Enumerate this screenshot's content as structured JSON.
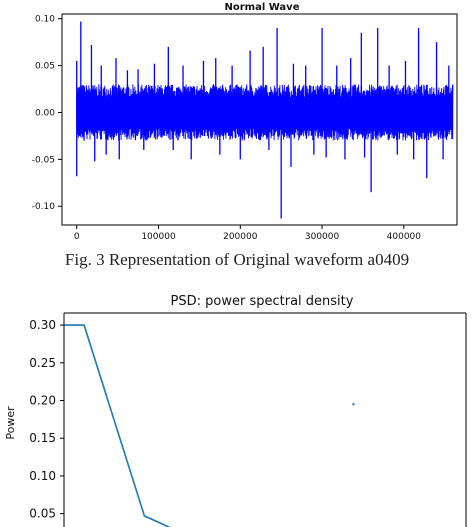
{
  "caption": "Fig.  3 Representation of Original waveform  a0409",
  "chart_data": [
    {
      "type": "line",
      "title": "Normal Wave",
      "xlabel": "",
      "ylabel": "",
      "xlim": [
        -18000,
        465000
      ],
      "ylim": [
        -0.12,
        0.105
      ],
      "x_ticks": [
        0,
        100000,
        200000,
        300000,
        400000
      ],
      "x_tick_labels": [
        "0",
        "100000",
        "200000",
        "300000",
        "400000"
      ],
      "y_ticks": [
        0.1,
        0.05,
        0.0,
        -0.05,
        -0.1
      ],
      "y_tick_labels": [
        "0.10",
        "0.05",
        "0.00",
        "-0.05",
        "-0.10"
      ],
      "color": "#0000ff",
      "series": [
        {
          "name": "",
          "envelope_base": 0.03,
          "range": [
            0,
            460000
          ],
          "peaks": [
            {
              "x": 0,
              "y": 0.055
            },
            {
              "x": 0,
              "y": -0.068
            },
            {
              "x": 5000,
              "y": 0.097
            },
            {
              "x": 9000,
              "y": -0.03
            },
            {
              "x": 18000,
              "y": 0.072
            },
            {
              "x": 22000,
              "y": -0.052
            },
            {
              "x": 30000,
              "y": 0.05
            },
            {
              "x": 36000,
              "y": -0.045
            },
            {
              "x": 48000,
              "y": 0.058
            },
            {
              "x": 52000,
              "y": -0.05
            },
            {
              "x": 62000,
              "y": 0.045
            },
            {
              "x": 75000,
              "y": 0.046
            },
            {
              "x": 82000,
              "y": -0.04
            },
            {
              "x": 95000,
              "y": 0.052
            },
            {
              "x": 112000,
              "y": 0.07
            },
            {
              "x": 118000,
              "y": -0.04
            },
            {
              "x": 130000,
              "y": 0.05
            },
            {
              "x": 140000,
              "y": -0.05
            },
            {
              "x": 155000,
              "y": 0.055
            },
            {
              "x": 170000,
              "y": 0.058
            },
            {
              "x": 175000,
              "y": -0.045
            },
            {
              "x": 190000,
              "y": 0.05
            },
            {
              "x": 200000,
              "y": -0.05
            },
            {
              "x": 212000,
              "y": 0.066
            },
            {
              "x": 228000,
              "y": 0.07
            },
            {
              "x": 235000,
              "y": -0.04
            },
            {
              "x": 245000,
              "y": 0.09
            },
            {
              "x": 250000,
              "y": -0.113
            },
            {
              "x": 262000,
              "y": -0.058
            },
            {
              "x": 265000,
              "y": 0.052
            },
            {
              "x": 280000,
              "y": 0.05
            },
            {
              "x": 290000,
              "y": -0.045
            },
            {
              "x": 300000,
              "y": 0.09
            },
            {
              "x": 305000,
              "y": -0.048
            },
            {
              "x": 318000,
              "y": 0.05
            },
            {
              "x": 328000,
              "y": -0.05
            },
            {
              "x": 335000,
              "y": 0.058
            },
            {
              "x": 348000,
              "y": 0.085
            },
            {
              "x": 352000,
              "y": -0.048
            },
            {
              "x": 360000,
              "y": -0.085
            },
            {
              "x": 368000,
              "y": 0.09
            },
            {
              "x": 382000,
              "y": 0.05
            },
            {
              "x": 392000,
              "y": -0.045
            },
            {
              "x": 402000,
              "y": 0.055
            },
            {
              "x": 412000,
              "y": -0.05
            },
            {
              "x": 418000,
              "y": 0.09
            },
            {
              "x": 428000,
              "y": -0.07
            },
            {
              "x": 440000,
              "y": 0.075
            },
            {
              "x": 448000,
              "y": -0.05
            },
            {
              "x": 455000,
              "y": 0.05
            }
          ]
        }
      ]
    },
    {
      "type": "line",
      "title": "PSD: power spectral density",
      "xlabel": "",
      "ylabel": "Power",
      "xlim": [
        0,
        20
      ],
      "y_view": [
        0.027,
        0.316
      ],
      "y_ticks": [
        0.3,
        0.25,
        0.2,
        0.15,
        0.1,
        0.05
      ],
      "y_tick_labels": [
        "0.30",
        "0.25",
        "0.20",
        "0.15",
        "0.10",
        "0.05"
      ],
      "color": "#1f77b4",
      "series": [
        {
          "name": "",
          "points": [
            [
              0,
              0.3
            ],
            [
              1,
              0.3
            ],
            [
              4,
              0.047
            ],
            [
              5,
              0.035
            ],
            [
              5.6,
              0.027
            ]
          ]
        }
      ],
      "marker": {
        "x": 14.4,
        "y": 0.195
      }
    }
  ]
}
